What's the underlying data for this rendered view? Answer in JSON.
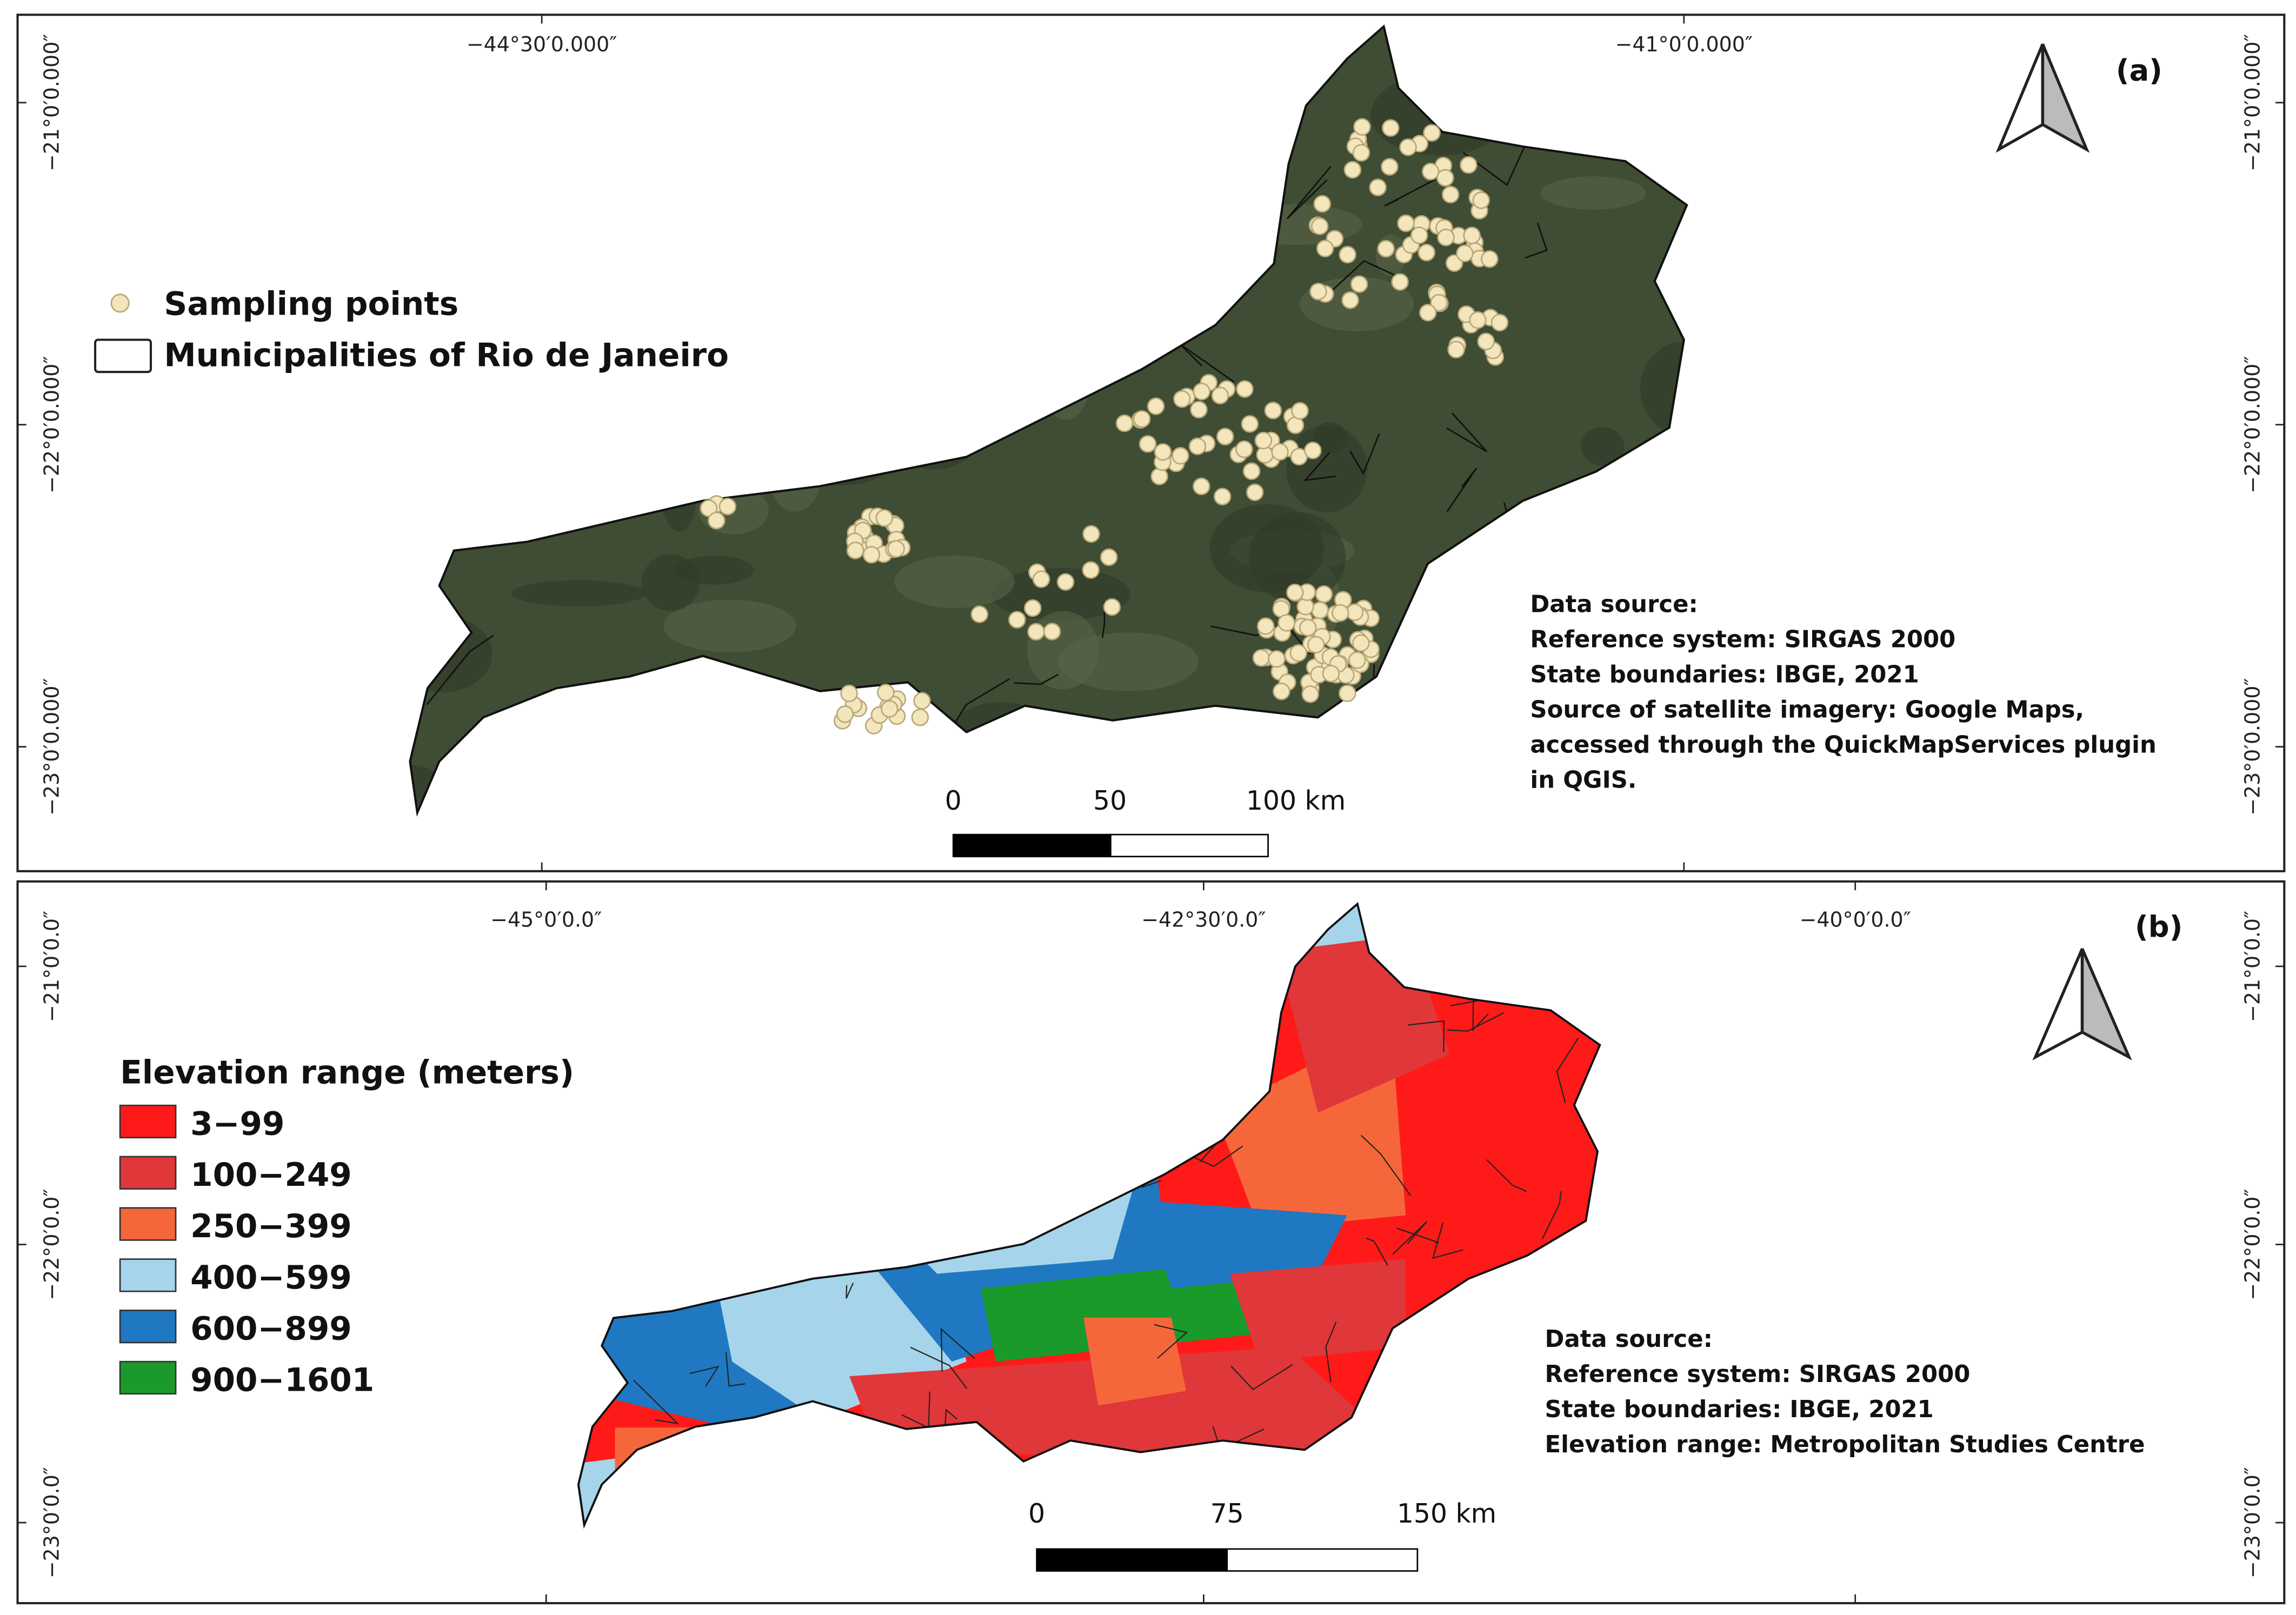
{
  "panels": [
    {
      "label": "(a)",
      "lon_labels": [
        "−44°30′0.000″",
        "−41°0′0.000″"
      ],
      "lat_labels": [
        "−21°0′0.000″",
        "−22°0′0.000″",
        "−23°0′0.000″"
      ],
      "legend": [
        {
          "label": "Sampling points"
        },
        {
          "label": "Municipalities of Rio de Janeiro"
        }
      ],
      "data_source": [
        "Data source:",
        "Reference system: SIRGAS 2000",
        "State boundaries: IBGE, 2021",
        "Source of satellite imagery: Google Maps,",
        "accessed through the QuickMapServices plugin",
        "in QGIS."
      ],
      "scale_labels": [
        "0",
        "50",
        "100 km"
      ]
    },
    {
      "label": "(b)",
      "lon_labels": [
        "−45°0′0.0″",
        "−42°30′0.0″",
        "−40°0′0.0″"
      ],
      "lat_labels": [
        "−21°0′0.0″",
        "−22°0′0.0″",
        "−23°0′0.0″"
      ],
      "legend_title": "Elevation range (meters)",
      "legend": [
        {
          "label": "3−99",
          "color": "#ff1a1a"
        },
        {
          "label": "100−249",
          "color": "#e0373a"
        },
        {
          "label": "250−399",
          "color": "#f5673a"
        },
        {
          "label": "400−599",
          "color": "#a6d4ea"
        },
        {
          "label": "600−899",
          "color": "#1f78c1"
        },
        {
          "label": "900−1601",
          "color": "#1a9a2a"
        }
      ],
      "data_source": [
        "Data source:",
        "Reference system: SIRGAS 2000",
        "State boundaries: IBGE, 2021",
        "Elevation range: Metropolitan Studies Centre"
      ],
      "scale_labels": [
        "0",
        "75",
        "150 km"
      ]
    }
  ]
}
